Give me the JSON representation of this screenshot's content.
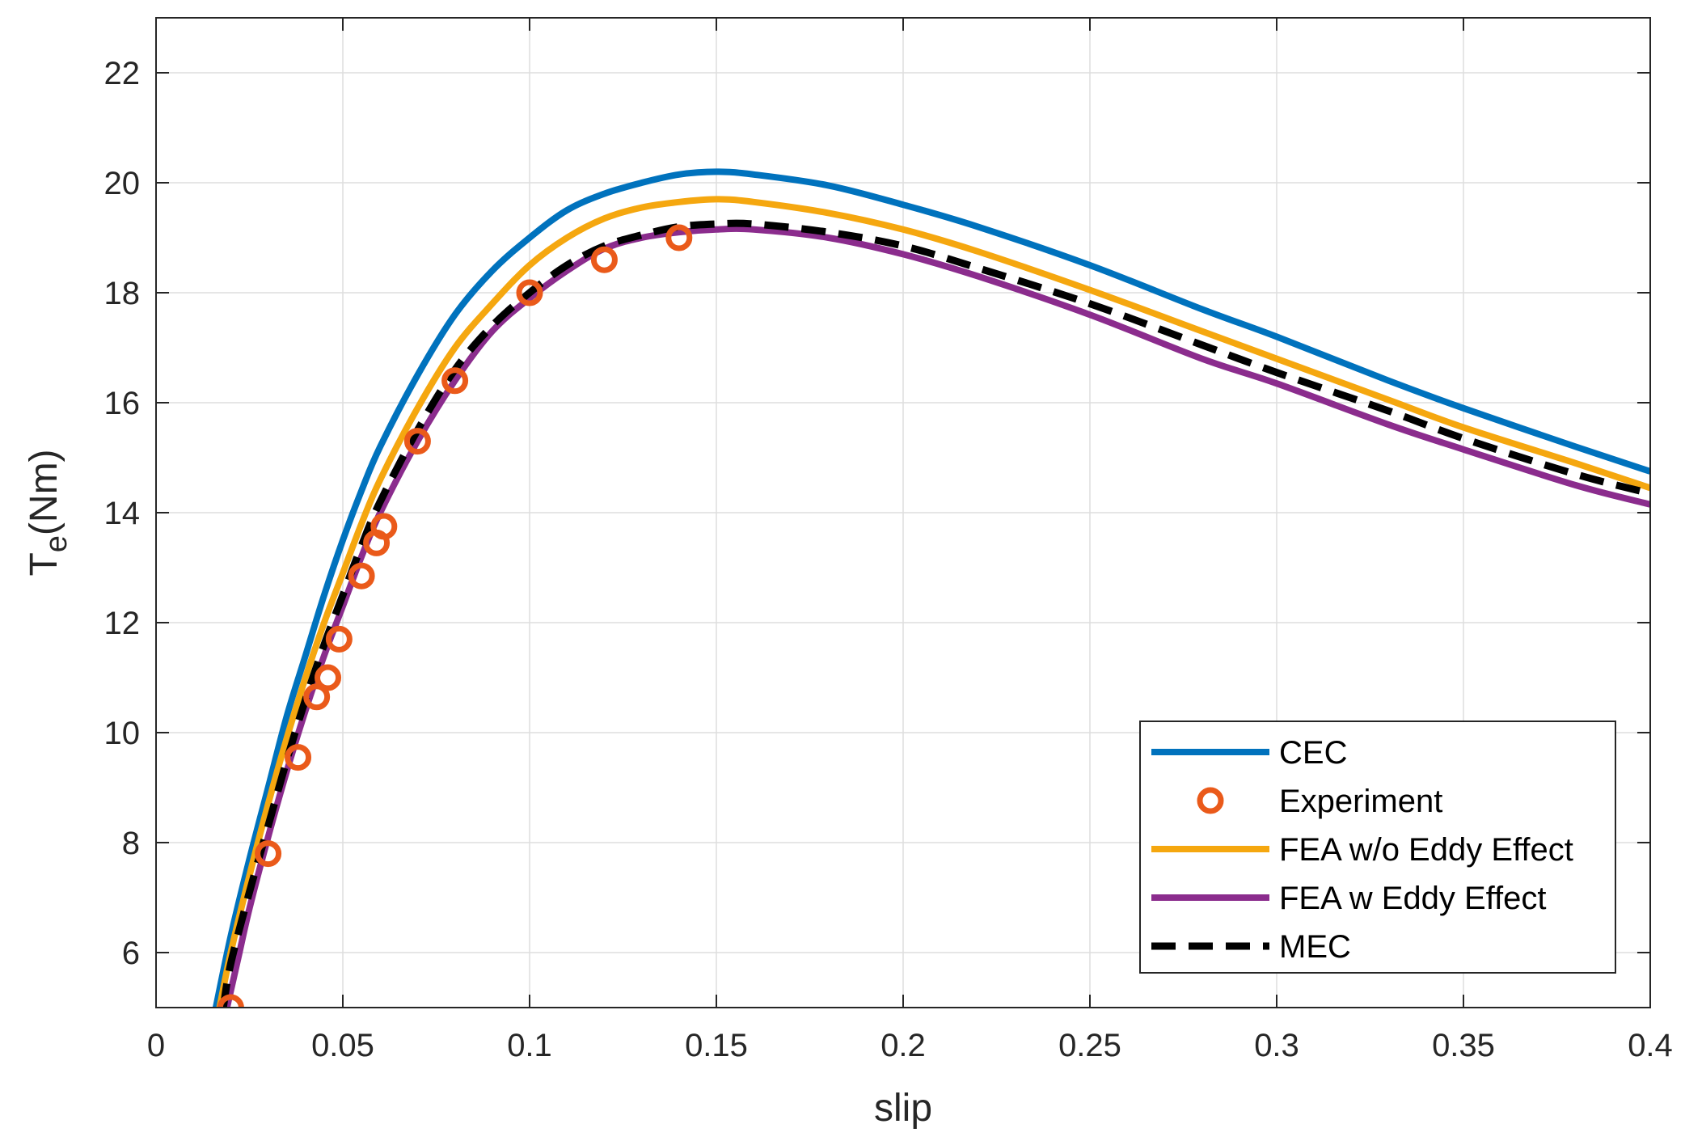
{
  "chart_data": {
    "type": "line",
    "title": "",
    "xlabel": "slip",
    "ylabel_main": "T",
    "ylabel_sub": "e",
    "ylabel_rest": "(Nm)",
    "xlim": [
      0,
      0.4
    ],
    "ylim": [
      5,
      23
    ],
    "grid": true,
    "legend_position": "bottom-right",
    "x_ticks": [
      0,
      0.05,
      0.1,
      0.15,
      0.2,
      0.25,
      0.3,
      0.35,
      0.4
    ],
    "x_tick_labels": [
      "0",
      "0.05",
      "0.1",
      "0.15",
      "0.2",
      "0.25",
      "0.3",
      "0.35",
      "0.4"
    ],
    "y_ticks": [
      6,
      8,
      10,
      12,
      14,
      16,
      18,
      20,
      22
    ],
    "y_tick_labels": [
      "6",
      "8",
      "10",
      "12",
      "14",
      "16",
      "18",
      "20",
      "22"
    ],
    "series": [
      {
        "name": "CEC",
        "style": "line",
        "color": "#0072BD",
        "x": [
          0.016,
          0.02,
          0.025,
          0.03,
          0.035,
          0.04,
          0.045,
          0.05,
          0.055,
          0.06,
          0.07,
          0.08,
          0.09,
          0.1,
          0.11,
          0.12,
          0.13,
          0.14,
          0.15,
          0.16,
          0.18,
          0.2,
          0.22,
          0.25,
          0.28,
          0.3,
          0.33,
          0.35,
          0.38,
          0.4
        ],
        "y": [
          5.0,
          6.3,
          7.7,
          9.0,
          10.3,
          11.4,
          12.5,
          13.5,
          14.4,
          15.2,
          16.5,
          17.6,
          18.4,
          19.0,
          19.5,
          19.8,
          20.0,
          20.15,
          20.2,
          20.15,
          19.95,
          19.6,
          19.2,
          18.5,
          17.7,
          17.2,
          16.4,
          15.9,
          15.2,
          14.75
        ]
      },
      {
        "name": "Experiment",
        "style": "marker",
        "color": "#EA5A1A",
        "x": [
          0.02,
          0.03,
          0.038,
          0.043,
          0.046,
          0.049,
          0.055,
          0.059,
          0.061,
          0.07,
          0.08,
          0.1,
          0.12,
          0.14
        ],
        "y": [
          5.0,
          7.8,
          9.55,
          10.65,
          11.0,
          11.7,
          12.85,
          13.45,
          13.75,
          15.3,
          16.4,
          18.0,
          18.6,
          19.0
        ]
      },
      {
        "name": "FEA w/o Eddy Effect",
        "style": "line",
        "color": "#F5A70F",
        "x": [
          0.017,
          0.02,
          0.025,
          0.03,
          0.035,
          0.04,
          0.045,
          0.05,
          0.055,
          0.06,
          0.07,
          0.08,
          0.09,
          0.1,
          0.11,
          0.12,
          0.13,
          0.14,
          0.15,
          0.16,
          0.18,
          0.2,
          0.22,
          0.25,
          0.28,
          0.3,
          0.33,
          0.35,
          0.38,
          0.4
        ],
        "y": [
          5.0,
          6.0,
          7.4,
          8.7,
          9.9,
          11.0,
          12.0,
          12.9,
          13.8,
          14.6,
          15.9,
          17.0,
          17.8,
          18.5,
          19.0,
          19.35,
          19.55,
          19.65,
          19.7,
          19.65,
          19.45,
          19.15,
          18.75,
          18.05,
          17.3,
          16.8,
          16.05,
          15.55,
          14.9,
          14.45
        ]
      },
      {
        "name": "FEA w Eddy Effect",
        "style": "line",
        "color": "#8B2C8D",
        "x": [
          0.019,
          0.022,
          0.025,
          0.03,
          0.035,
          0.04,
          0.045,
          0.05,
          0.055,
          0.06,
          0.07,
          0.08,
          0.09,
          0.1,
          0.11,
          0.12,
          0.13,
          0.14,
          0.15,
          0.16,
          0.18,
          0.2,
          0.22,
          0.25,
          0.28,
          0.3,
          0.33,
          0.35,
          0.38,
          0.4
        ],
        "y": [
          5.0,
          5.9,
          6.8,
          8.1,
          9.3,
          10.4,
          11.4,
          12.3,
          13.2,
          14.0,
          15.3,
          16.4,
          17.3,
          17.9,
          18.4,
          18.8,
          19.0,
          19.1,
          19.15,
          19.15,
          19.0,
          18.7,
          18.3,
          17.6,
          16.8,
          16.35,
          15.6,
          15.15,
          14.5,
          14.15
        ]
      },
      {
        "name": "MEC",
        "style": "dashed",
        "color": "#000000",
        "x": [
          0.018,
          0.02,
          0.025,
          0.03,
          0.035,
          0.04,
          0.045,
          0.05,
          0.055,
          0.06,
          0.07,
          0.08,
          0.09,
          0.1,
          0.11,
          0.12,
          0.13,
          0.14,
          0.15,
          0.16,
          0.18,
          0.2,
          0.22,
          0.25,
          0.28,
          0.3,
          0.33,
          0.35,
          0.38,
          0.4
        ],
        "y": [
          5.0,
          5.8,
          7.1,
          8.3,
          9.5,
          10.6,
          11.6,
          12.5,
          13.4,
          14.2,
          15.5,
          16.6,
          17.4,
          18.0,
          18.5,
          18.85,
          19.05,
          19.2,
          19.25,
          19.25,
          19.1,
          18.85,
          18.45,
          17.8,
          17.05,
          16.55,
          15.85,
          15.35,
          14.7,
          14.35
        ]
      }
    ]
  }
}
